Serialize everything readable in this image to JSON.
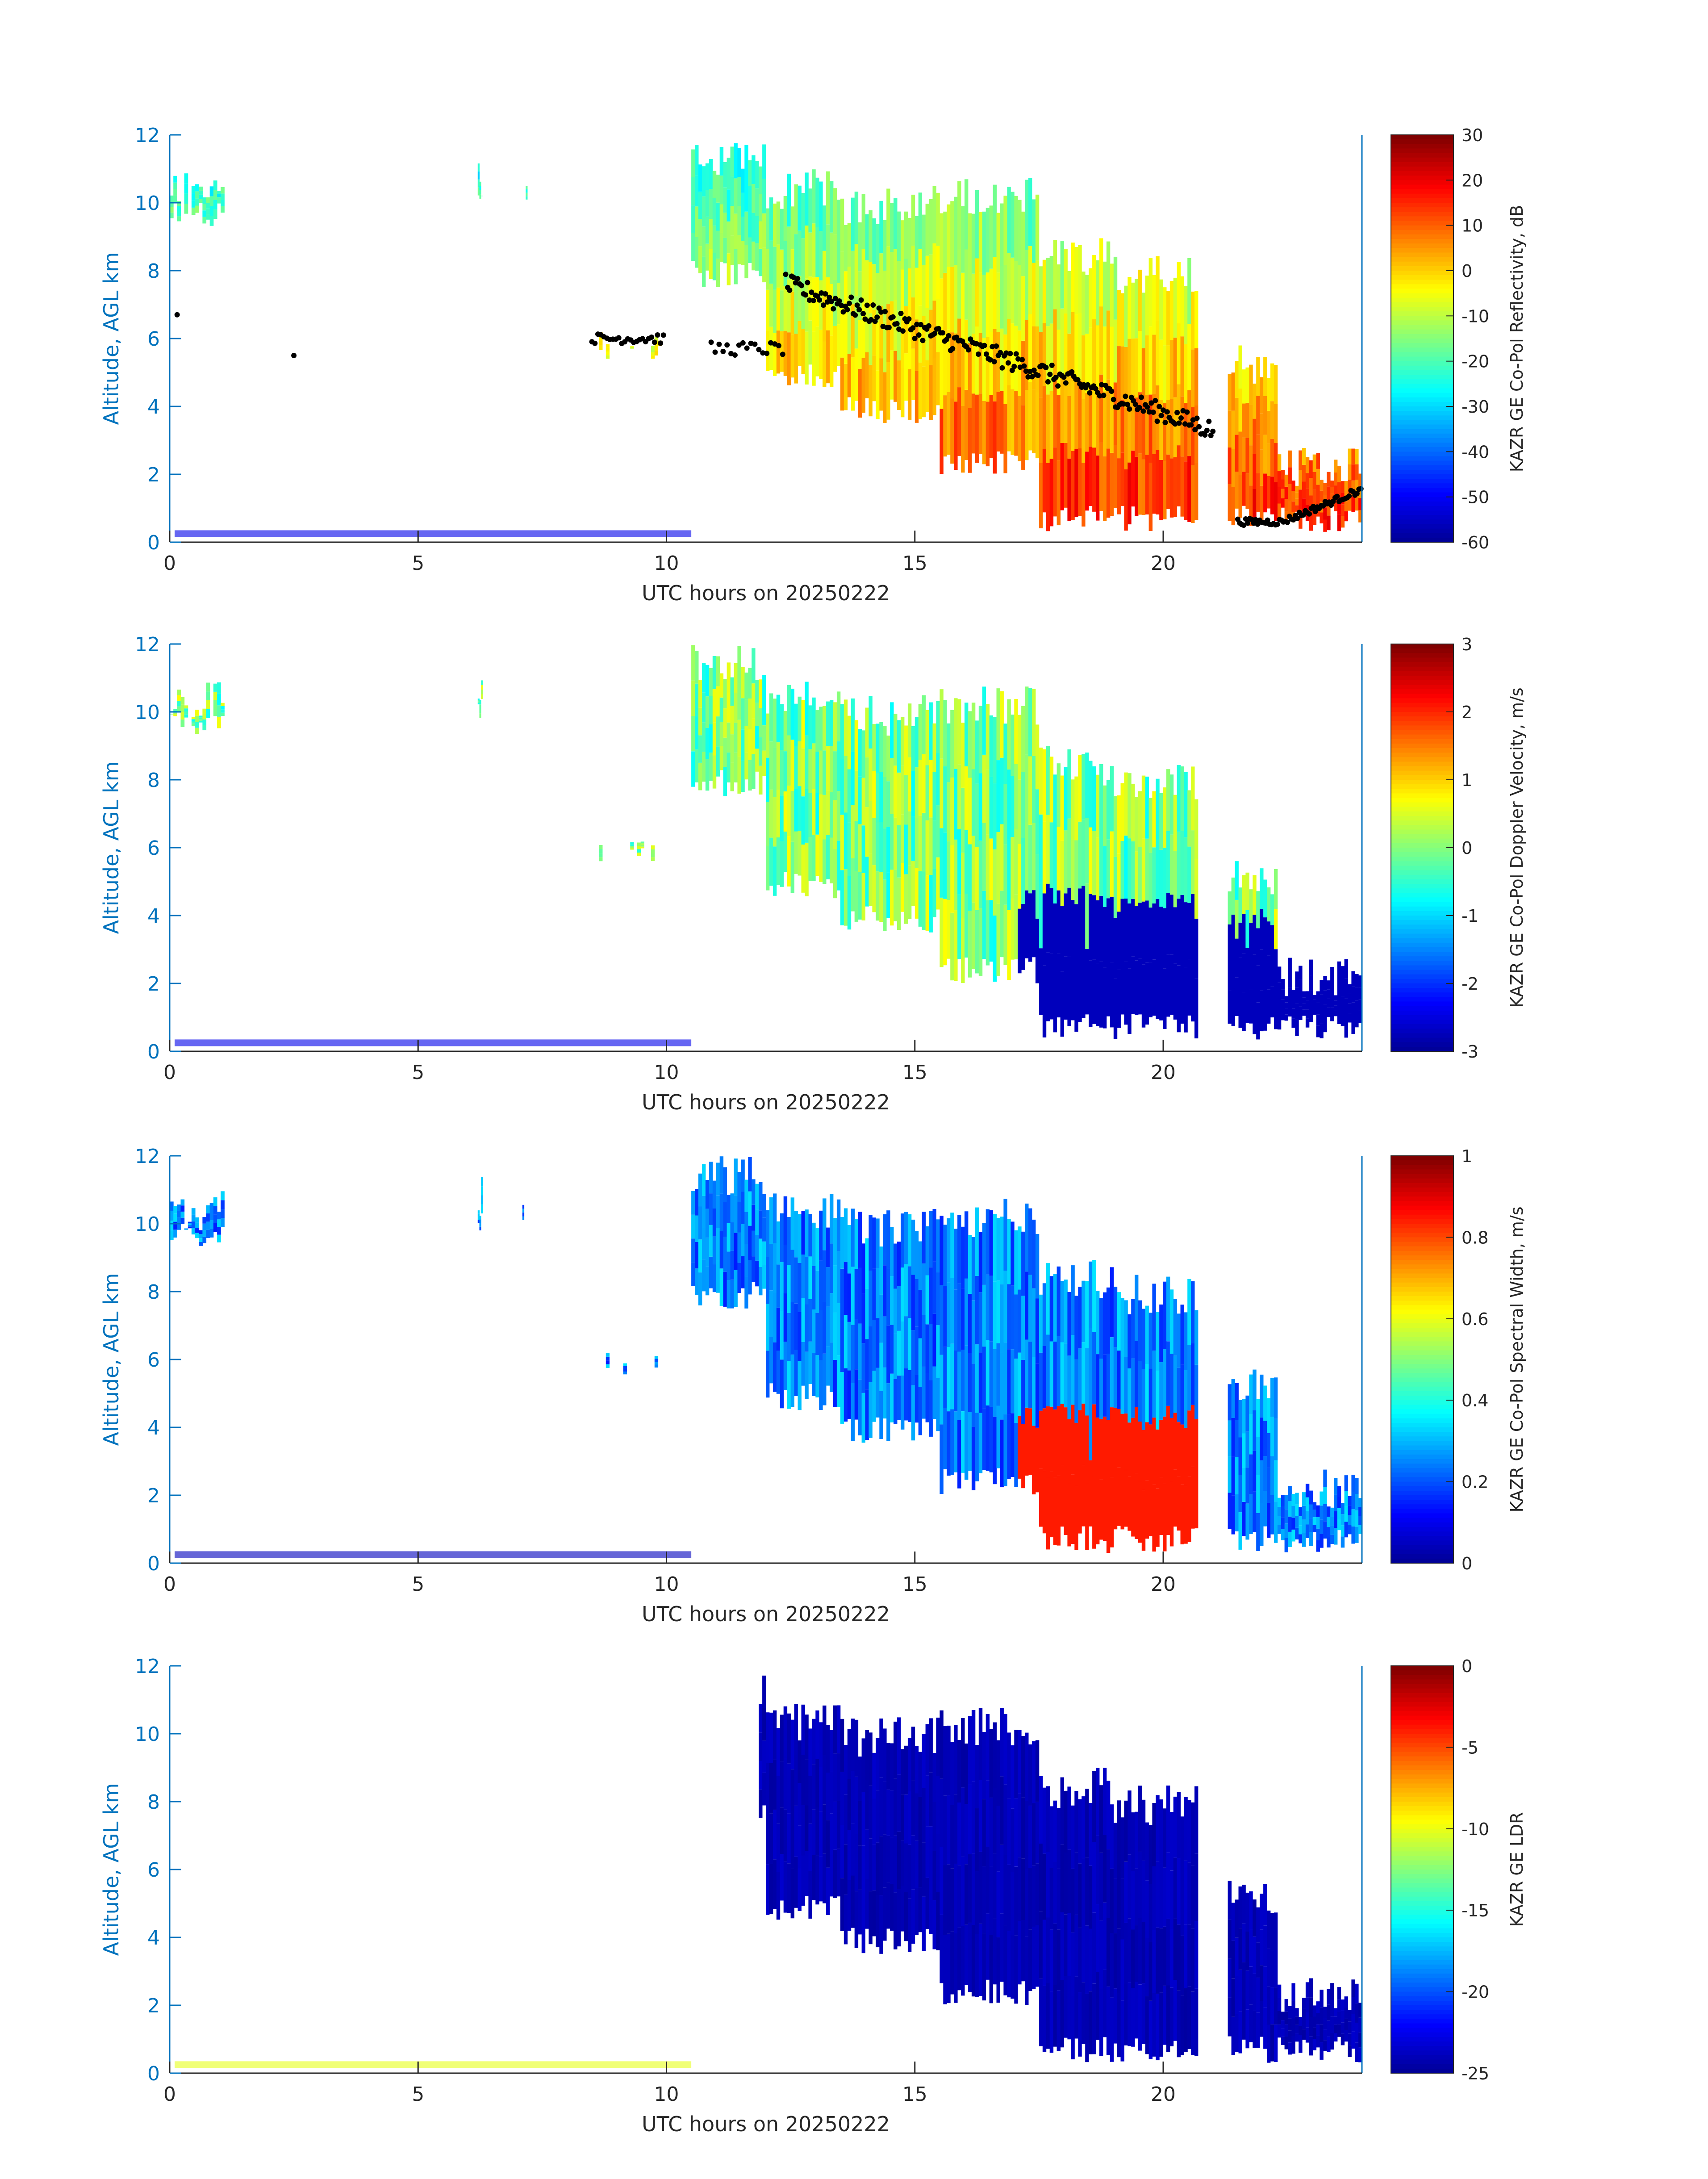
{
  "figure": {
    "xlabel": "UTC hours on 20250222",
    "ylabel": "Altitude, AGL km"
  },
  "colors": {
    "axis_blue": "#0072BD",
    "axis_black": "#262626",
    "jet": [
      "#00008f",
      "#0000ff",
      "#0080ff",
      "#00ffff",
      "#80ff80",
      "#ffff00",
      "#ff8000",
      "#ff0000",
      "#800000"
    ],
    "detected_cloud_base": "#000000"
  },
  "chart_data": [
    {
      "type": "heatmap",
      "id": "reflectivity",
      "xlabel": "UTC hours on 20250222",
      "ylabel": "Altitude, AGL km",
      "xlim": [
        0,
        24
      ],
      "ylim": [
        0,
        12
      ],
      "xticks": [
        "0",
        "5",
        "10",
        "15",
        "20"
      ],
      "yticks": [
        "0",
        "2",
        "4",
        "6",
        "8",
        "10",
        "12"
      ],
      "colorbar_label": "KAZR GE Co-Pol Reflectivity, dB",
      "colorbar_ticks": [
        "30",
        "20",
        "10",
        "0",
        "-10",
        "-20",
        "-30",
        "-40",
        "-50",
        "-60"
      ],
      "clim": [
        -60,
        30
      ],
      "grid": false,
      "overlay_points": "cloud base heights (black dots)"
    },
    {
      "type": "heatmap",
      "id": "doppler_velocity",
      "xlabel": "UTC hours on 20250222",
      "ylabel": "Altitude, AGL km",
      "xlim": [
        0,
        24
      ],
      "ylim": [
        0,
        12
      ],
      "xticks": [
        "0",
        "5",
        "10",
        "15",
        "20"
      ],
      "yticks": [
        "0",
        "2",
        "4",
        "6",
        "8",
        "10",
        "12"
      ],
      "colorbar_label": "KAZR GE Co-Pol Doppler Velocity, m/s",
      "colorbar_ticks": [
        "3",
        "2",
        "1",
        "0",
        "-1",
        "-2",
        "-3"
      ],
      "clim": [
        -3,
        3
      ],
      "grid": false
    },
    {
      "type": "heatmap",
      "id": "spectral_width",
      "xlabel": "UTC hours on 20250222",
      "ylabel": "Altitude, AGL km",
      "xlim": [
        0,
        24
      ],
      "ylim": [
        0,
        12
      ],
      "xticks": [
        "0",
        "5",
        "10",
        "15",
        "20"
      ],
      "yticks": [
        "0",
        "2",
        "4",
        "6",
        "8",
        "10",
        "12"
      ],
      "colorbar_label": "KAZR GE Co-Pol Spectral Width, m/s",
      "colorbar_ticks": [
        "1",
        "0.8",
        "0.6",
        "0.4",
        "0.2",
        "0"
      ],
      "clim": [
        0,
        1
      ],
      "grid": false
    },
    {
      "type": "heatmap",
      "id": "ldr",
      "xlabel": "UTC hours on 20250222",
      "ylabel": "Altitude, AGL km",
      "xlim": [
        0,
        24
      ],
      "ylim": [
        0,
        12
      ],
      "xticks": [
        "0",
        "5",
        "10",
        "15",
        "20"
      ],
      "yticks": [
        "0",
        "2",
        "4",
        "6",
        "8",
        "10",
        "12"
      ],
      "colorbar_label": "KAZR GE LDR",
      "colorbar_ticks": [
        "0",
        "-5",
        "-10",
        "-15",
        "-20",
        "-25"
      ],
      "clim": [
        -25,
        0
      ],
      "grid": false
    }
  ]
}
